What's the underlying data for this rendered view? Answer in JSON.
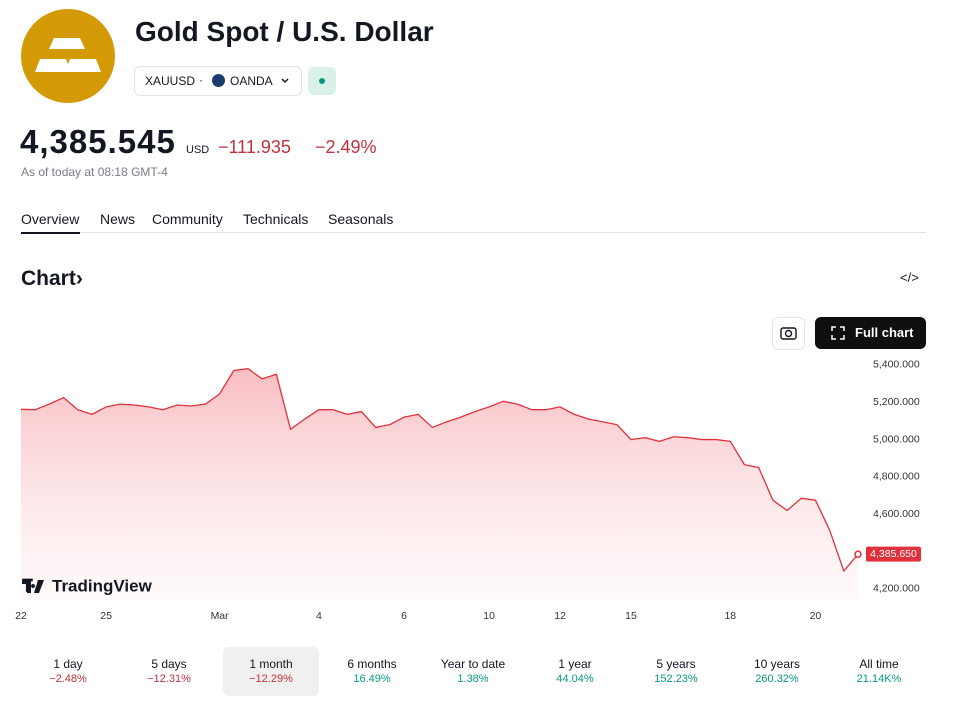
{
  "header": {
    "title": "Gold Spot / U.S. Dollar",
    "symbol": "XAUUSD",
    "exchange": "OANDA"
  },
  "quote": {
    "price": "4,385.545",
    "currency": "USD",
    "change": "−111.935",
    "change_percent": "−2.49%",
    "timestamp": "As of today at 08:18 GMT-4"
  },
  "tabs": [
    "Overview",
    "News",
    "Community",
    "Technicals",
    "Seasonals"
  ],
  "section_title": "Chart",
  "full_chart_button": "Full chart",
  "brand": "TradingView",
  "chart_data": {
    "type": "line",
    "color": "#e0313d",
    "categories": [
      "22",
      null,
      null,
      null,
      null,
      null,
      "25",
      null,
      null,
      null,
      null,
      null,
      null,
      null,
      "Mar",
      null,
      null,
      null,
      null,
      null,
      null,
      "4",
      null,
      null,
      null,
      null,
      null,
      "6",
      null,
      null,
      null,
      null,
      null,
      "10",
      null,
      null,
      null,
      null,
      "12",
      null,
      null,
      null,
      null,
      "15",
      null,
      null,
      null,
      null,
      null,
      null,
      "18",
      null,
      null,
      null,
      null,
      null,
      "20",
      null,
      null,
      null
    ],
    "values": [
      5162,
      5160,
      5190,
      5225,
      5160,
      5135,
      5175,
      5190,
      5185,
      5175,
      5160,
      5185,
      5180,
      5190,
      5245,
      5370,
      5380,
      5325,
      5350,
      5055,
      5110,
      5160,
      5160,
      5135,
      5150,
      5065,
      5080,
      5120,
      5135,
      5065,
      5095,
      5120,
      5150,
      5175,
      5205,
      5190,
      5160,
      5160,
      5175,
      5135,
      5110,
      5095,
      5080,
      5000,
      5010,
      4990,
      5015,
      5010,
      5000,
      5000,
      4990,
      4865,
      4850,
      4675,
      4620,
      4685,
      4675,
      4515,
      4295,
      4385.65
    ],
    "last_price": {
      "value": 4385.65,
      "label": "4,385.650"
    },
    "ylim": [
      4140,
      5480
    ],
    "yticks": [
      {
        "value": 4200,
        "label": "4,200.000"
      },
      {
        "value": 4600,
        "label": "4,600.000"
      },
      {
        "value": 4800,
        "label": "4,800.000"
      },
      {
        "value": 5000,
        "label": "5,000.000"
      },
      {
        "value": 5200,
        "label": "5,200.000"
      },
      {
        "value": 5400,
        "label": "5,400.000"
      }
    ]
  },
  "periods": [
    {
      "label": "1 day",
      "change": "−2.48%"
    },
    {
      "label": "5 days",
      "change": "−12.31%"
    },
    {
      "label": "1 month",
      "change": "−12.29%"
    },
    {
      "label": "6 months",
      "change": "16.49%"
    },
    {
      "label": "Year to date",
      "change": "1.38%"
    },
    {
      "label": "1 year",
      "change": "44.04%"
    },
    {
      "label": "5 years",
      "change": "152.23%"
    },
    {
      "label": "10 years",
      "change": "260.32%"
    },
    {
      "label": "All time",
      "change": "21.14K%"
    }
  ],
  "selected_period": 2
}
